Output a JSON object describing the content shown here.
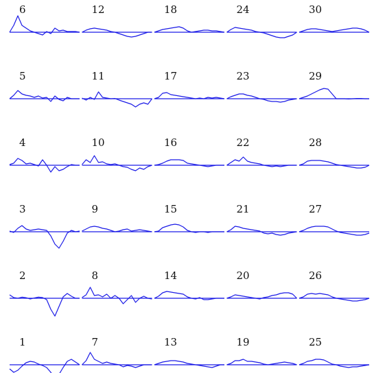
{
  "chart_data": {
    "type": "line",
    "layout": "small-multiples-grid",
    "rows": 6,
    "columns": 5,
    "title": "",
    "xlabel": "",
    "ylabel": "",
    "axes_visible": false,
    "grid": false,
    "legend": "none",
    "ylim": [
      -1,
      1
    ],
    "line_color": "#1a1ae6",
    "panels": [
      {
        "label": "1",
        "values": [
          -0.3,
          -0.55,
          -0.4,
          -0.1,
          0.15,
          0.25,
          0.2,
          0.05,
          -0.05,
          -0.2,
          -0.55,
          -1.0,
          -0.7,
          -0.2,
          0.25,
          0.4,
          0.2,
          0.0
        ]
      },
      {
        "label": "2",
        "values": [
          0.25,
          0.05,
          0.0,
          0.08,
          0.04,
          -0.05,
          0.02,
          0.08,
          0.05,
          -0.1,
          -0.8,
          -1.3,
          -0.6,
          0.1,
          0.35,
          0.15,
          0.0,
          0.0
        ]
      },
      {
        "label": "3",
        "values": [
          0.05,
          -0.05,
          0.25,
          0.45,
          0.2,
          0.1,
          0.15,
          0.2,
          0.15,
          0.1,
          -0.3,
          -0.9,
          -1.2,
          -0.7,
          -0.1,
          0.1,
          0.0,
          0.05
        ]
      },
      {
        "label": "4",
        "values": [
          0.05,
          0.15,
          0.5,
          0.35,
          0.1,
          0.15,
          0.05,
          -0.05,
          0.4,
          0.0,
          -0.5,
          -0.1,
          -0.4,
          -0.3,
          -0.1,
          0.05,
          0.0,
          0.0
        ]
      },
      {
        "label": "5",
        "values": [
          0.0,
          0.25,
          0.6,
          0.35,
          0.25,
          0.2,
          0.1,
          0.2,
          0.05,
          0.1,
          -0.2,
          0.2,
          -0.05,
          -0.15,
          0.1,
          0.0,
          0.0,
          0.0
        ]
      },
      {
        "label": "6",
        "values": [
          0.0,
          0.5,
          1.2,
          0.5,
          0.3,
          0.1,
          0.0,
          -0.1,
          -0.2,
          0.05,
          -0.1,
          0.3,
          0.1,
          0.15,
          0.05,
          0.05,
          0.05,
          0.0
        ]
      },
      {
        "label": "7",
        "values": [
          0.0,
          0.3,
          0.9,
          0.4,
          0.25,
          0.1,
          0.2,
          0.1,
          0.05,
          0.0,
          -0.15,
          -0.05,
          -0.1,
          -0.2,
          -0.1,
          0.0,
          0.0,
          0.0
        ]
      },
      {
        "label": "8",
        "values": [
          0.05,
          0.25,
          0.8,
          0.2,
          0.25,
          0.1,
          0.3,
          0.0,
          0.2,
          0.0,
          -0.4,
          -0.1,
          0.2,
          -0.3,
          0.0,
          0.15,
          0.0,
          -0.05
        ]
      },
      {
        "label": "9",
        "values": [
          0.05,
          0.2,
          0.35,
          0.4,
          0.35,
          0.25,
          0.2,
          0.1,
          0.0,
          0.05,
          0.15,
          0.2,
          0.05,
          0.1,
          0.15,
          0.1,
          0.05,
          0.0
        ]
      },
      {
        "label": "10",
        "values": [
          0.05,
          0.4,
          0.2,
          0.7,
          0.2,
          0.25,
          0.1,
          0.05,
          0.1,
          0.0,
          -0.1,
          -0.15,
          -0.3,
          -0.4,
          -0.2,
          -0.3,
          -0.1,
          0.0
        ]
      },
      {
        "label": "11",
        "values": [
          0.05,
          -0.1,
          0.1,
          -0.05,
          0.5,
          0.1,
          0.05,
          0.0,
          0.02,
          -0.1,
          -0.2,
          -0.3,
          -0.4,
          -0.6,
          -0.4,
          -0.3,
          -0.4,
          0.0
        ]
      },
      {
        "label": "12",
        "values": [
          0.0,
          0.15,
          0.25,
          0.3,
          0.25,
          0.2,
          0.15,
          0.05,
          0.0,
          -0.1,
          -0.2,
          -0.3,
          -0.35,
          -0.3,
          -0.2,
          -0.1,
          0.0,
          0.0
        ]
      },
      {
        "label": "13",
        "values": [
          0.0,
          0.1,
          0.2,
          0.25,
          0.3,
          0.3,
          0.25,
          0.2,
          0.1,
          0.05,
          0.0,
          -0.05,
          -0.1,
          -0.15,
          -0.2,
          -0.1,
          0.0,
          0.0
        ]
      },
      {
        "label": "14",
        "values": [
          0.0,
          0.15,
          0.4,
          0.5,
          0.45,
          0.4,
          0.35,
          0.3,
          0.1,
          0.0,
          -0.05,
          0.05,
          -0.1,
          -0.1,
          -0.05,
          0.0,
          0.0,
          0.0
        ]
      },
      {
        "label": "15",
        "values": [
          0.0,
          0.05,
          0.3,
          0.4,
          0.5,
          0.55,
          0.5,
          0.35,
          0.1,
          0.0,
          -0.05,
          0.0,
          0.0,
          -0.05,
          0.0,
          0.0,
          0.0,
          0.0
        ]
      },
      {
        "label": "16",
        "values": [
          0.0,
          0.05,
          0.15,
          0.3,
          0.4,
          0.4,
          0.4,
          0.35,
          0.15,
          0.1,
          0.05,
          0.0,
          -0.05,
          -0.1,
          -0.05,
          0.0,
          0.0,
          0.0
        ]
      },
      {
        "label": "17",
        "values": [
          0.0,
          0.1,
          0.4,
          0.45,
          0.3,
          0.25,
          0.2,
          0.15,
          0.1,
          0.05,
          0.0,
          0.05,
          0.0,
          0.1,
          0.05,
          0.1,
          0.05,
          0.0
        ]
      },
      {
        "label": "18",
        "values": [
          0.0,
          0.1,
          0.2,
          0.25,
          0.3,
          0.35,
          0.4,
          0.3,
          0.1,
          0.0,
          0.05,
          0.1,
          0.15,
          0.15,
          0.1,
          0.1,
          0.05,
          0.0
        ]
      },
      {
        "label": "19",
        "values": [
          0.0,
          0.1,
          0.3,
          0.3,
          0.4,
          0.25,
          0.25,
          0.2,
          0.15,
          0.05,
          0.0,
          0.05,
          0.1,
          0.15,
          0.2,
          0.15,
          0.1,
          0.0
        ]
      },
      {
        "label": "20",
        "values": [
          0.0,
          0.1,
          0.25,
          0.2,
          0.15,
          0.1,
          0.05,
          0.0,
          -0.05,
          0.05,
          0.1,
          0.2,
          0.25,
          0.35,
          0.4,
          0.4,
          0.3,
          0.0
        ]
      },
      {
        "label": "21",
        "values": [
          0.0,
          0.15,
          0.4,
          0.35,
          0.25,
          0.2,
          0.15,
          0.1,
          0.05,
          -0.1,
          -0.15,
          -0.1,
          -0.2,
          -0.25,
          -0.2,
          -0.1,
          -0.05,
          0.0
        ]
      },
      {
        "label": "22",
        "values": [
          0.0,
          0.2,
          0.4,
          0.3,
          0.6,
          0.3,
          0.2,
          0.15,
          0.1,
          0.0,
          -0.05,
          -0.1,
          -0.05,
          -0.1,
          -0.05,
          0.0,
          0.0,
          0.0
        ]
      },
      {
        "label": "23",
        "values": [
          0.0,
          0.15,
          0.25,
          0.35,
          0.35,
          0.25,
          0.2,
          0.1,
          0.0,
          -0.05,
          -0.15,
          -0.2,
          -0.2,
          -0.25,
          -0.2,
          -0.1,
          -0.05,
          0.0
        ]
      },
      {
        "label": "24",
        "values": [
          0.0,
          0.2,
          0.35,
          0.3,
          0.25,
          0.2,
          0.15,
          0.05,
          0.0,
          -0.05,
          -0.15,
          -0.25,
          -0.35,
          -0.4,
          -0.4,
          -0.3,
          -0.2,
          0.0
        ]
      },
      {
        "label": "25",
        "values": [
          0.0,
          0.1,
          0.25,
          0.3,
          0.4,
          0.4,
          0.35,
          0.2,
          0.05,
          0.0,
          -0.1,
          -0.15,
          -0.2,
          -0.15,
          -0.15,
          -0.1,
          -0.05,
          0.0
        ]
      },
      {
        "label": "26",
        "values": [
          0.0,
          0.1,
          0.3,
          0.35,
          0.3,
          0.35,
          0.3,
          0.25,
          0.1,
          0.0,
          -0.05,
          -0.1,
          -0.15,
          -0.2,
          -0.2,
          -0.15,
          -0.1,
          0.0
        ]
      },
      {
        "label": "27",
        "values": [
          0.0,
          0.1,
          0.25,
          0.35,
          0.4,
          0.4,
          0.4,
          0.35,
          0.2,
          0.05,
          -0.05,
          -0.1,
          -0.15,
          -0.2,
          -0.25,
          -0.25,
          -0.2,
          -0.1
        ]
      },
      {
        "label": "28",
        "values": [
          0.0,
          0.1,
          0.3,
          0.35,
          0.35,
          0.35,
          0.3,
          0.25,
          0.15,
          0.05,
          0.0,
          -0.05,
          -0.1,
          -0.15,
          -0.2,
          -0.2,
          -0.15,
          0.0
        ]
      },
      {
        "label": "29",
        "values": [
          0.0,
          0.1,
          0.2,
          0.35,
          0.5,
          0.65,
          0.75,
          0.7,
          0.35,
          0.0,
          0.0,
          0.0,
          -0.02,
          0.0,
          0.02,
          0.02,
          0.0,
          0.0
        ]
      },
      {
        "label": "30",
        "values": [
          0.0,
          0.1,
          0.2,
          0.25,
          0.25,
          0.2,
          0.15,
          0.1,
          0.05,
          0.1,
          0.15,
          0.2,
          0.25,
          0.3,
          0.3,
          0.25,
          0.15,
          0.0
        ]
      }
    ]
  }
}
